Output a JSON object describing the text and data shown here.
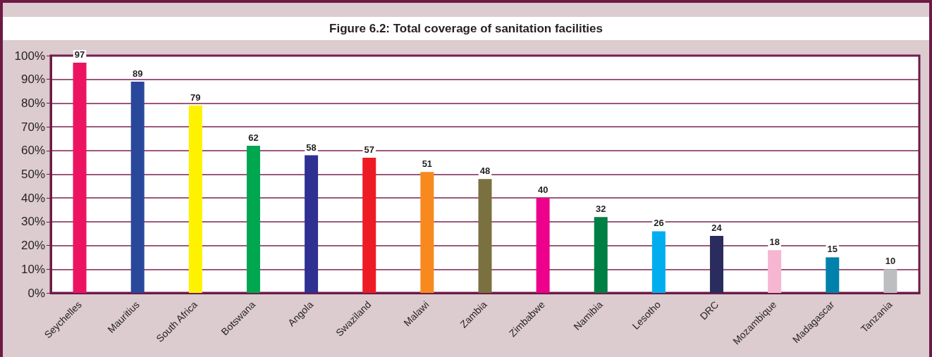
{
  "chart_data": {
    "type": "bar",
    "title": "Figure 6.2: Total coverage of sanitation facilities",
    "categories": [
      "Seychelles",
      "Mauritius",
      "South Africa",
      "Botswana",
      "Angola",
      "Swaziland",
      "Malawi",
      "Zambia",
      "Zimbabwe",
      "Namibia",
      "Lesotho",
      "DRC",
      "Mozambique",
      "Madagascar",
      "Tanzania"
    ],
    "values": [
      97,
      89,
      79,
      62,
      58,
      57,
      51,
      48,
      40,
      32,
      26,
      24,
      18,
      15,
      10
    ],
    "colors": [
      "#ec1461",
      "#29489c",
      "#fff200",
      "#00a650",
      "#2e3192",
      "#ed1c24",
      "#f7891f",
      "#7a7040",
      "#ec008c",
      "#007f45",
      "#00aeef",
      "#2a2c5e",
      "#f6b6d2",
      "#0081ab",
      "#bcbec0"
    ],
    "ylim": [
      0,
      100
    ],
    "yticks": [
      {
        "value": 0,
        "label": "0%"
      },
      {
        "value": 10,
        "label": "10%"
      },
      {
        "value": 20,
        "label": "20%"
      },
      {
        "value": 30,
        "label": "30%"
      },
      {
        "value": 40,
        "label": "40%"
      },
      {
        "value": 50,
        "label": "50%"
      },
      {
        "value": 60,
        "label": "60%"
      },
      {
        "value": 70,
        "label": "70%"
      },
      {
        "value": 80,
        "label": "80%"
      },
      {
        "value": 90,
        "label": "90%"
      },
      {
        "value": 100,
        "label": "100%"
      }
    ],
    "grid": "y",
    "data_labels": true
  }
}
